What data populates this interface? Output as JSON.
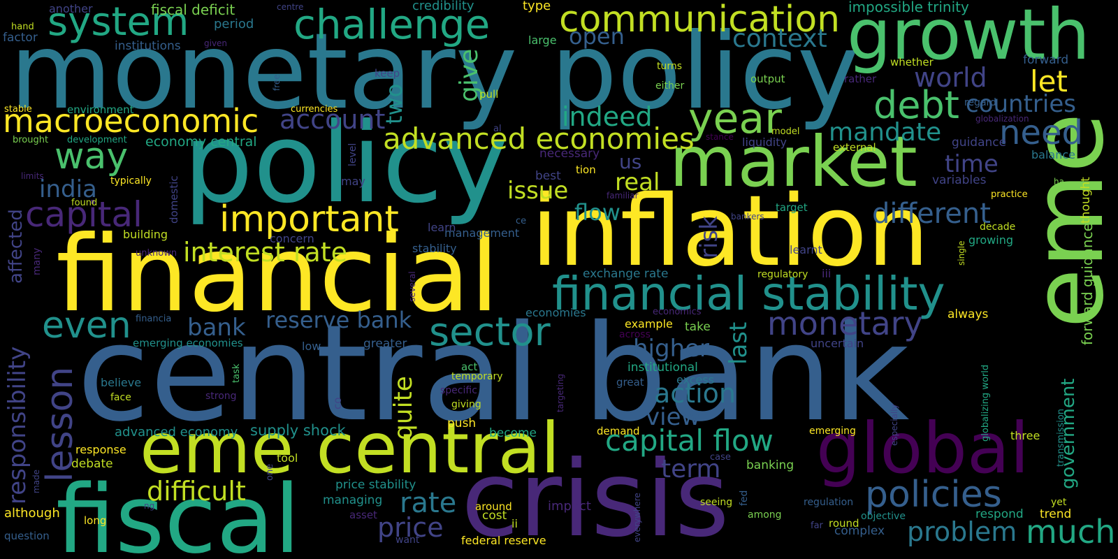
{
  "words": {
    "central_bank": "central bank",
    "monetary_policy": "monetary policy",
    "policy": "policy",
    "financial": "financial",
    "inflation": "inflation",
    "market": "market",
    "eme": "eme",
    "crisis": "crisis",
    "eme_central": "eme central",
    "fiscal": "fiscal",
    "growth": "growth",
    "global": "global",
    "financial_stability": "financial stability",
    "communication": "communication",
    "challenge": "challenge",
    "system": "system",
    "macroeconomic": "macroeconomic",
    "debt": "debt",
    "year": "year",
    "important": "important",
    "advanced_economies": "advanced economies",
    "monetary": "monetary",
    "sector": "sector",
    "capital_flow": "capital flow",
    "policies": "policies",
    "capital": "capital",
    "even": "even",
    "lesson": "lesson",
    "interest_rate": "interest rate",
    "need": "need",
    "countries": "countries",
    "mandate": "mandate",
    "context": "context",
    "world": "world",
    "way": "way",
    "indeed": "indeed",
    "account": "account",
    "reserve_bank": "reserve bank",
    "bank": "bank",
    "difficult": "difficult",
    "rate": "rate",
    "price": "price",
    "problem": "problem",
    "much": "much",
    "different": "different",
    "action": "action",
    "view": "view",
    "term": "term",
    "higher": "higher",
    "issue": "issue",
    "real": "real",
    "flow": "flow",
    "india": "india",
    "open": "open",
    "let": "let",
    "time": "time",
    "quite": "quite",
    "last": "last",
    "risk": "risk",
    "give": "give",
    "two": "two",
    "responsibility": "responsibility",
    "affected": "affected",
    "government": "government",
    "forward_guidance": "forward guidance",
    "fiscal_deficit": "fiscal deficit",
    "impossible_trinity": "impossible trinity",
    "credibility": "credibility",
    "another": "another",
    "centre": "centre",
    "type": "type",
    "hand": "hand",
    "factor": "factor",
    "period": "period",
    "institutions": "institutions",
    "given": "given",
    "large": "large",
    "whether": "whether",
    "forward": "forward",
    "rather": "rather",
    "regard": "regard",
    "globalization": "globalization",
    "output": "output",
    "turns": "turns",
    "either": "either",
    "pull": "pull",
    "keep": "keep",
    "free": "free",
    "stable": "stable",
    "environment": "environment",
    "currencies": "currencies",
    "brought": "brought",
    "development": "development",
    "economy_central": "economy central",
    "model": "model",
    "stance": "stance",
    "liquidity": "liquidity",
    "external": "external",
    "guidance": "guidance",
    "balance": "balance",
    "al": "al",
    "level": "level",
    "necessary": "necessary",
    "us": "us",
    "tion": "tion",
    "best": "best",
    "may": "may",
    "typically": "typically",
    "limits": "limits",
    "domestic": "domestic",
    "found": "found",
    "familiar": "familiar",
    "target": "target",
    "variables": "variables",
    "ha": "ha",
    "thought": "thought",
    "practice": "practice",
    "building": "building",
    "unknown": "unknown",
    "bankers": "bankers",
    "ce": "ce",
    "learn": "learn",
    "management": "management",
    "concern": "concern",
    "stability": "stability",
    "learnt": "learnt",
    "single": "single",
    "decade": "decade",
    "growing": "growing",
    "many": "many",
    "exchange_rate": "exchange rate",
    "regulatory": "regulatory",
    "iii": "iii",
    "several": "several",
    "economies": "economies",
    "economics": "economics",
    "always": "always",
    "financia": "financia",
    "example": "example",
    "take": "take",
    "across": "across",
    "uncertain": "uncertain",
    "emerging_economies": "emerging economies",
    "low": "low",
    "greater": "greater",
    "task": "task",
    "institutional": "institutional",
    "act": "act",
    "temporary": "temporary",
    "great": "great",
    "excess": "excess",
    "believe": "believe",
    "face": "face",
    "strong": "strong",
    "co": "co",
    "specific": "specific",
    "giving": "giving",
    "targeting": "targeting",
    "globalizing_world": "globalizing world",
    "especially": "especially",
    "transmission": "transmission",
    "three": "three",
    "advanced_economy": "advanced economy",
    "supply_shock": "supply shock",
    "push": "push",
    "become": "become",
    "demand": "demand",
    "emerging": "emerging",
    "response": "response",
    "debate": "debate",
    "tool": "tool",
    "one": "one",
    "case": "case",
    "banking": "banking",
    "made": "made",
    "price_stability": "price stability",
    "managing": "managing",
    "everywhere": "everywhere",
    "fed": "fed",
    "seeing": "seeing",
    "regulation": "regulation",
    "yet": "yet",
    "although": "although",
    "ng": "ng",
    "asset": "asset",
    "around": "around",
    "cost": "cost",
    "impact": "impact",
    "among": "among",
    "objective": "objective",
    "respond": "respond",
    "trend": "trend",
    "long": "long",
    "ii": "ii",
    "far": "far",
    "round": "round",
    "complex": "complex",
    "question": "question",
    "want": "want",
    "federal_reserve": "federal reserve"
  }
}
